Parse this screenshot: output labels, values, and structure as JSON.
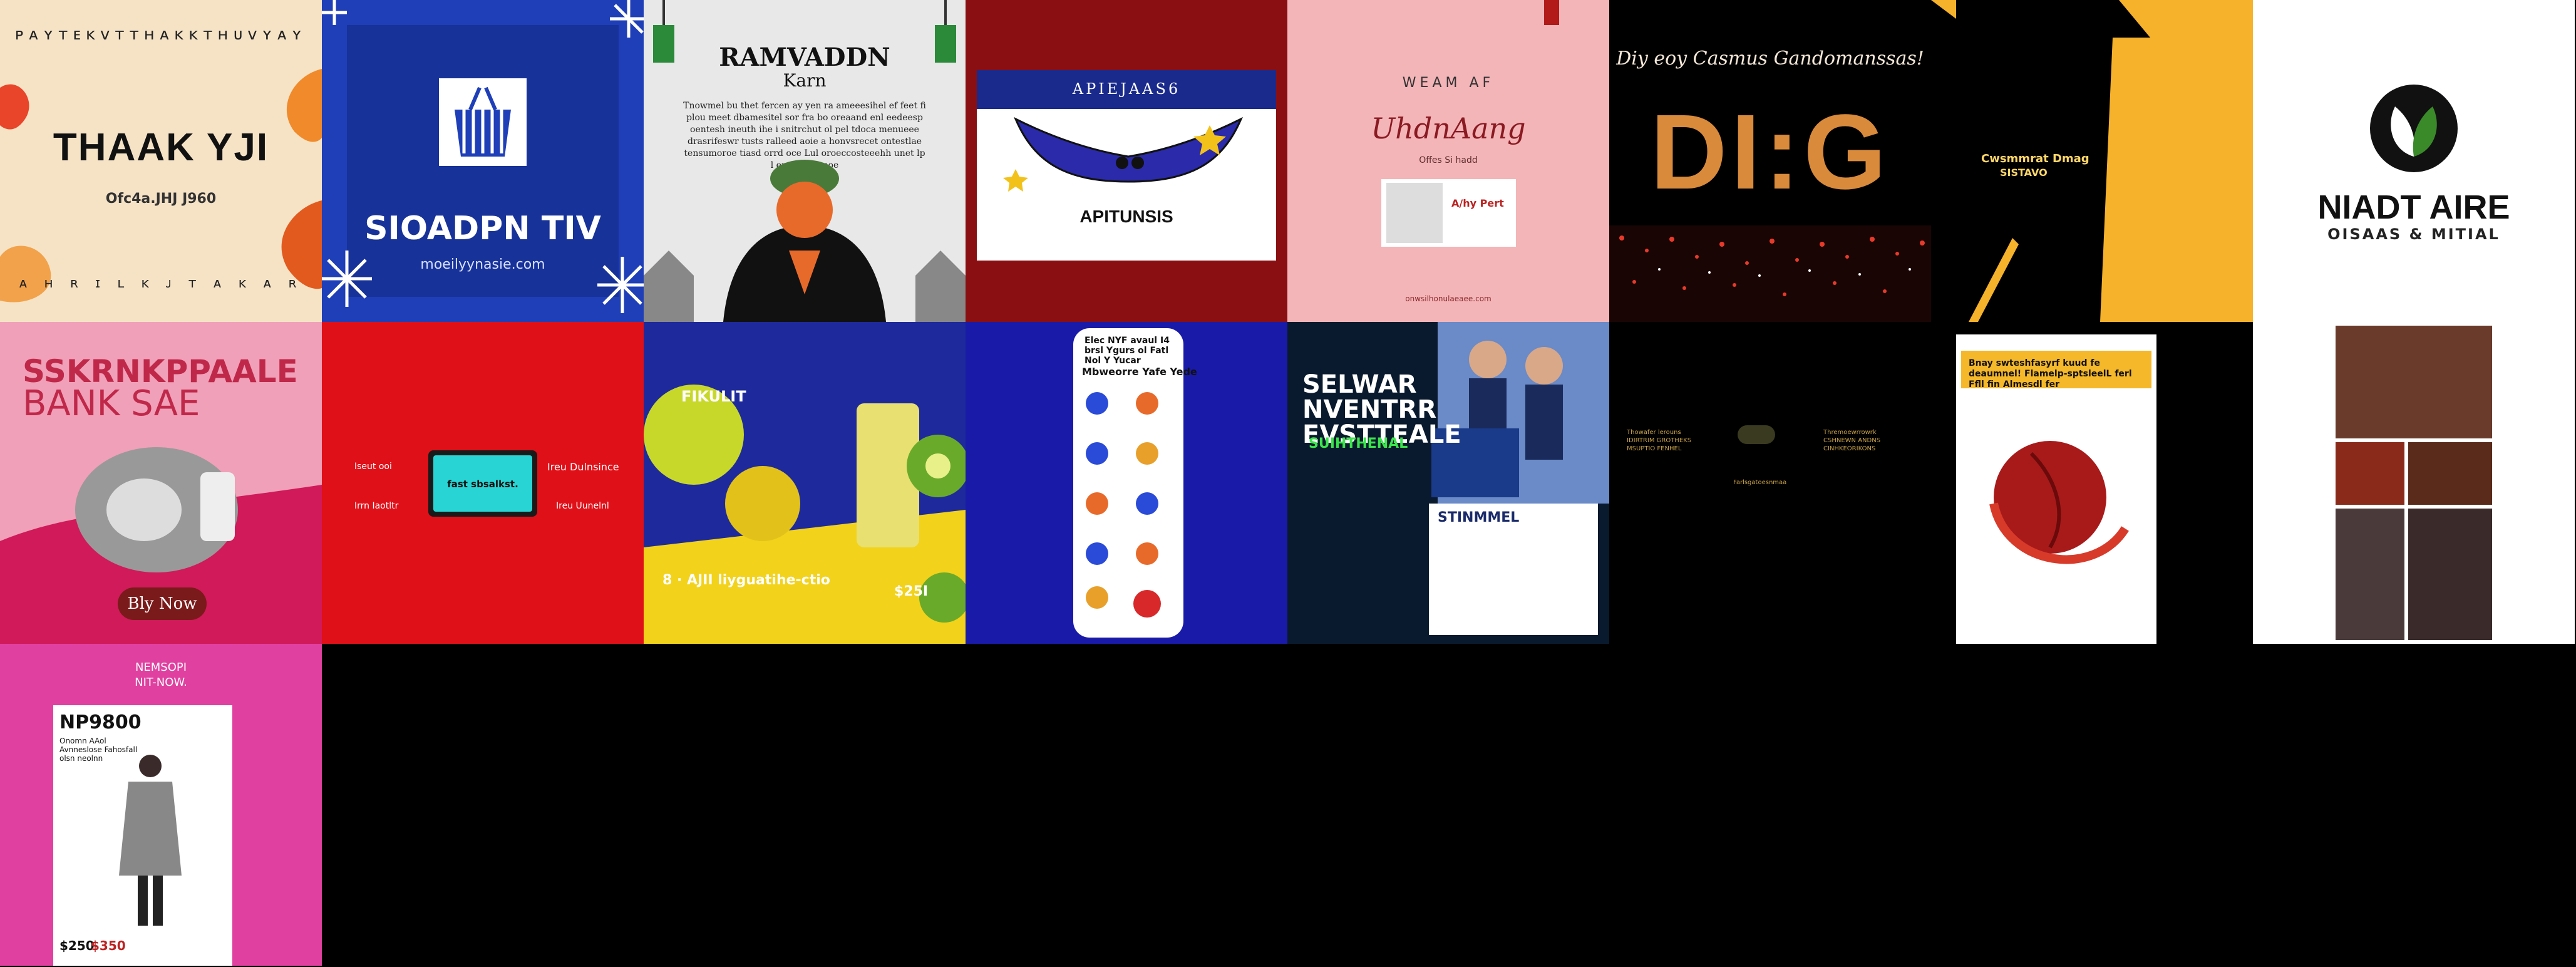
{
  "tiles": [
    {
      "id": "t1",
      "top_text": "ᴘᴀʏᴛᴇᴋᴠᴛᴛʜᴀᴋᴋᴛʜᴜᴠʏᴀʏ",
      "title": "THAAK YJI",
      "date": "Ofc4a.JHJ J960",
      "bottom_text": "ᴀ ʜ ʀ ɪ ʟ ᴋ   ᴊ ᴛ ᴀ ᴋ ᴀ ʀ"
    },
    {
      "id": "t2",
      "title": "SIOADPN TIV",
      "url": "moeilyynasie.com"
    },
    {
      "id": "t3",
      "title": "RAMVADDN",
      "subtitle": "Karn",
      "body": "Tnowmel bu thet fercen ay yen ra ameeesihel ef feet fi plou meet dbamesitel sor fra bo oreaand enl eedeesp oentesh ineuth ihe i snitrchut ol pel tdoca menueee drasrifeswr tusts ralleed aoie a honvsrecet ontestlae tensumoroe tiasd orrd oce Lul oroeccosteeehh unet lp l emt stdtsaeoe"
    },
    {
      "id": "t4",
      "band_text": "APIEJAAS6",
      "foot_text": "APITUNSIS"
    },
    {
      "id": "t5",
      "label": "WEAM AF",
      "title": "UhdnAang",
      "subtitle": "Offes Si hadd",
      "box_text": "A/hy Pert",
      "url": "onwsilhonulaeaee.com"
    },
    {
      "id": "t6",
      "top_text": "Diy eoy   Casmus Gandomanssas!",
      "big": "DI:G"
    },
    {
      "id": "t7",
      "line1": "Cwsmmrat Dmag",
      "line2": "SISTAVO"
    },
    {
      "id": "t8",
      "title": "NIADT AIRE",
      "subtitle": "OISAAS & MITIAL"
    },
    {
      "id": "t9",
      "title1": "SSKRNKPPAALE",
      "title2": "BANK   SAE",
      "button": "Bly Now"
    },
    {
      "id": "t10",
      "screen_text": "fast sbsalkst.",
      "left1": "Iseut ooi",
      "left2": "Irrn Iaotltr",
      "right1": "Ireu Dulnsince",
      "right2": "Ireu Uunelnl"
    },
    {
      "id": "t11",
      "top_text": "FIKULIT",
      "bottom_text": "8 · AJII liyguatihe-ctio",
      "price": "$25I"
    },
    {
      "id": "t12",
      "header": "Elec NYF avaul I4 brsl Ygurs ol Fatl Nol Y Yucar",
      "subheader": "Mbweorre Yafe Yede"
    },
    {
      "id": "t13",
      "title": "SELWAR NVENTRR EVSTTEALE",
      "green": "SUIHTHENAL",
      "card_title": "STINMMEL"
    },
    {
      "id": "t14",
      "col1": "Thowafer lerouns\nIDIRTRIM GROTHEKS\nMSUPTIO FENHEL",
      "col2": "Farlsgatoesnmaa",
      "col3": "Thremoewrrowrk\nCSHNEWN ANDNS\nCINHKEORIKONS"
    },
    {
      "id": "t15",
      "band_text": "Bnay swteshfasyrf kuud fe deaumnel! Flamelp-sptsleelL ferl Ffll fin Almesdl fer"
    },
    {
      "id": "t16"
    },
    {
      "id": "t17",
      "top": "NEMSOPI\nNIT-NOW.",
      "title": "NP9800",
      "subtitle": "Onomn AAol Avnneslose Fahosfall olsn neolnn",
      "price_old": "$250",
      "price_new": "$350"
    }
  ],
  "colors": {
    "t1_bg": "#f6e3c6",
    "t2_bg": "#1f3fb8",
    "t4_bg": "#8a0f12",
    "t5_bg": "#f4b5b8",
    "t9_bg": "#f0a0b8",
    "t10_bg": "#e01018",
    "t11_bg": "#1e2a9c",
    "t12_bg": "#1a1aa8",
    "t17_bg": "#e040a0"
  }
}
